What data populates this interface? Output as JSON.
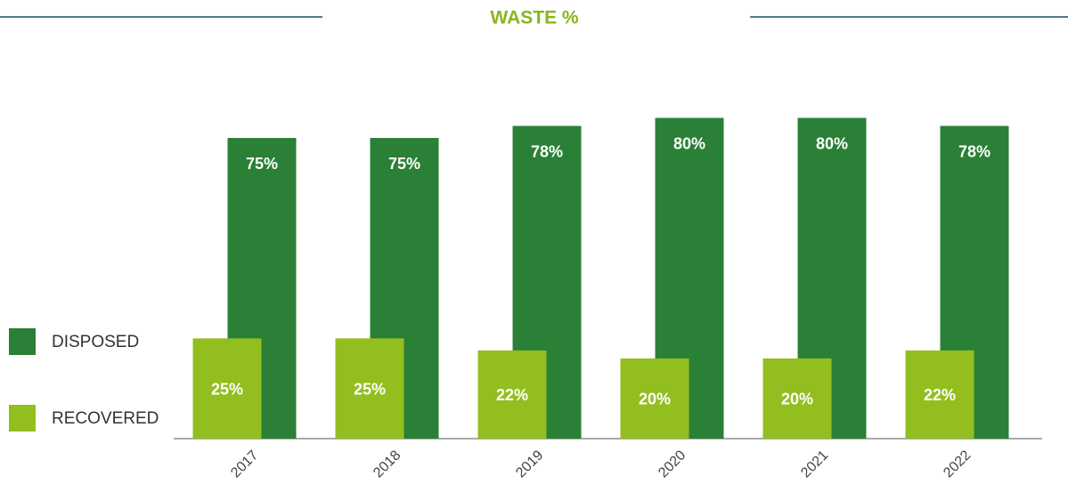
{
  "chart_data": {
    "type": "bar",
    "title": "WASTE %",
    "categories": [
      "2017",
      "2018",
      "2019",
      "2020",
      "2021",
      "2022"
    ],
    "series": [
      {
        "name": "DISPOSED",
        "color": "#2a8036",
        "values": [
          75,
          75,
          78,
          80,
          80,
          78
        ],
        "value_labels": [
          "75%",
          "75%",
          "78%",
          "80%",
          "80%",
          "78%"
        ]
      },
      {
        "name": "RECOVERED",
        "color": "#93be1f",
        "values": [
          25,
          25,
          22,
          20,
          20,
          22
        ],
        "value_labels": [
          "25%",
          "25%",
          "22%",
          "20%",
          "20%",
          "22%"
        ]
      }
    ],
    "ylim": [
      0,
      85
    ],
    "legend": "left"
  }
}
